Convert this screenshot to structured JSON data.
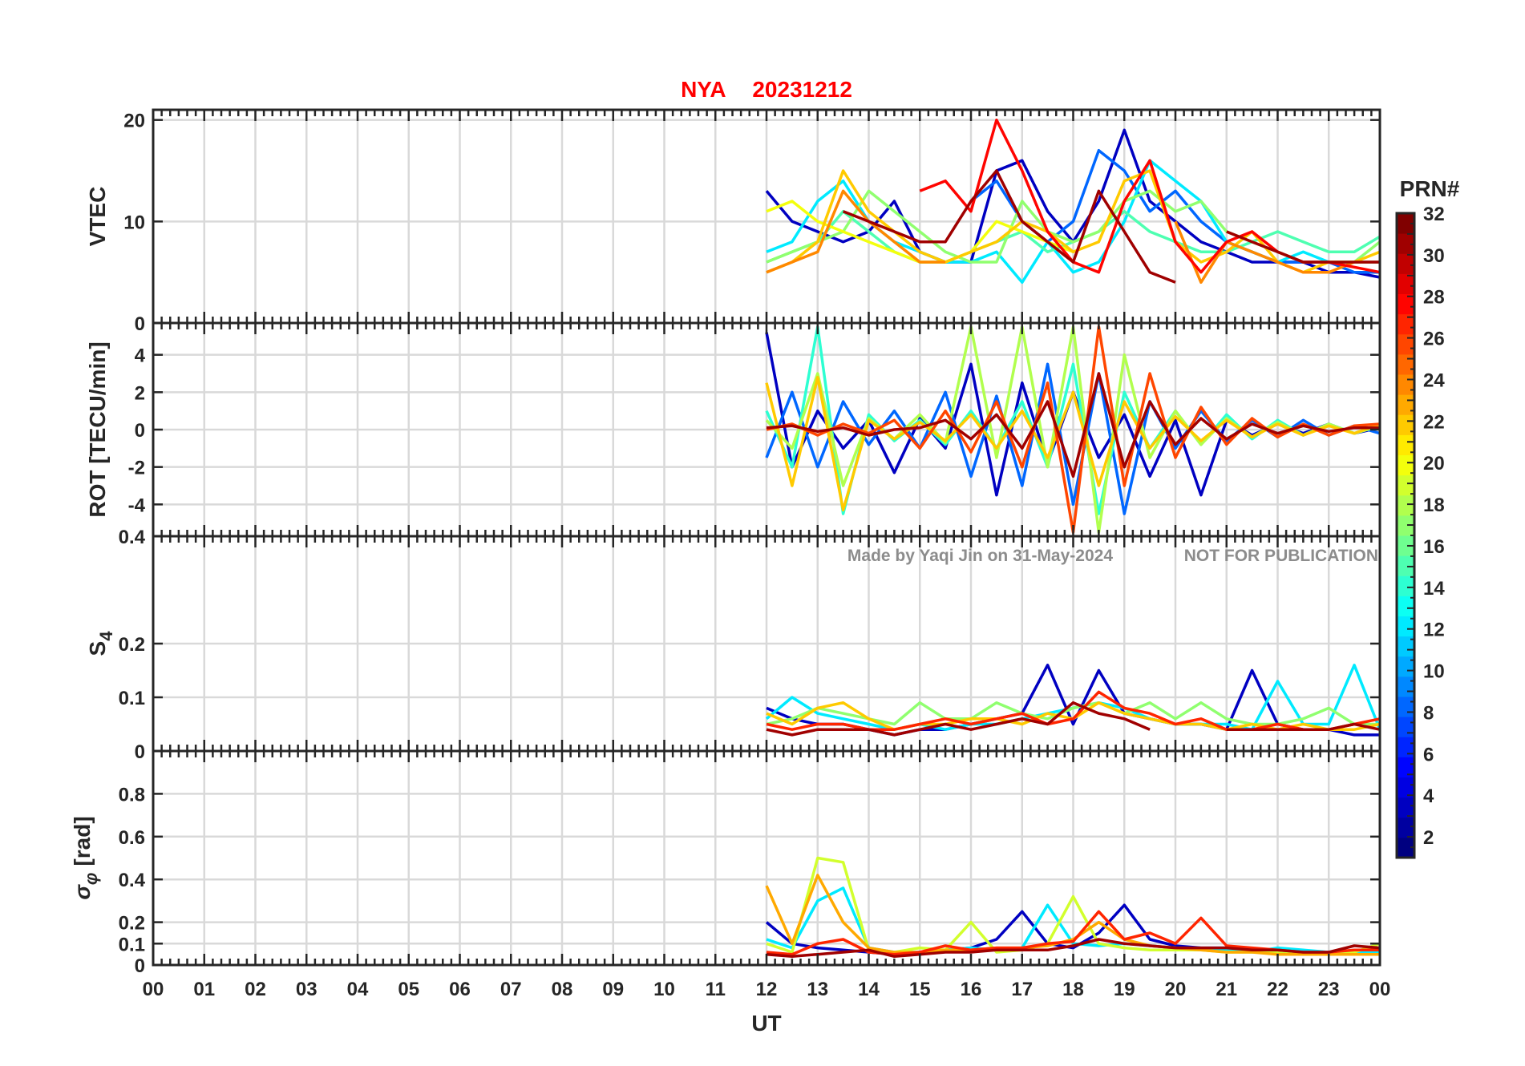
{
  "chart_data": {
    "type": "line",
    "title": {
      "station": "NYA",
      "date": "20231212"
    },
    "xlabel": "UT",
    "xlim": [
      0,
      24
    ],
    "x_tick_labels": [
      "00",
      "01",
      "02",
      "03",
      "04",
      "05",
      "06",
      "07",
      "08",
      "09",
      "10",
      "11",
      "12",
      "13",
      "14",
      "15",
      "16",
      "17",
      "18",
      "19",
      "20",
      "21",
      "22",
      "23",
      "00"
    ],
    "watermark": {
      "made_by": "Made by Yaqi Jin on 31-May-2024",
      "notice": "NOT FOR PUBLICATION"
    },
    "colorbar": {
      "label": "PRN#",
      "range": [
        1,
        32
      ],
      "ticks": [
        2,
        4,
        6,
        8,
        10,
        12,
        14,
        16,
        18,
        20,
        22,
        24,
        26,
        28,
        30,
        32
      ],
      "colormap": "jet"
    },
    "x": [
      12,
      12.5,
      13,
      13.5,
      14,
      14.5,
      15,
      15.5,
      16,
      16.5,
      17,
      17.5,
      18,
      18.5,
      19,
      19.5,
      20,
      20.5,
      21,
      21.5,
      22,
      22.5,
      23,
      23.5,
      24
    ],
    "panels": [
      {
        "name": "vtec",
        "ylabel": "VTEC",
        "ylim": [
          0,
          21
        ],
        "yticks": [
          0,
          10,
          20
        ],
        "ytick_labels": [
          "0",
          "10",
          "20"
        ],
        "series": [
          {
            "prn": 3,
            "values": [
              13,
              10,
              9,
              8,
              9,
              12,
              7,
              6,
              6,
              15,
              16,
              11,
              8,
              12,
              19,
              12,
              10,
              8,
              7,
              6,
              6,
              6,
              5,
              5,
              4.5
            ]
          },
          {
            "prn": 8,
            "values": [
              null,
              null,
              null,
              null,
              null,
              null,
              null,
              null,
              12,
              14,
              10,
              8,
              10,
              17,
              15,
              11,
              13,
              10,
              8,
              7,
              6,
              6,
              6,
              5,
              5
            ]
          },
          {
            "prn": 12,
            "values": [
              7,
              8,
              12,
              14,
              10,
              8,
              7,
              6,
              6,
              7,
              4,
              8,
              5,
              6,
              10,
              16,
              14,
              12,
              8,
              7,
              6,
              7,
              6,
              6,
              6
            ]
          },
          {
            "prn": 15,
            "values": [
              6,
              7,
              8,
              11,
              9,
              7,
              6,
              6,
              7,
              8,
              9,
              7,
              8,
              9,
              11,
              9,
              8,
              7,
              7,
              8,
              9,
              8,
              7,
              7,
              8.5
            ]
          },
          {
            "prn": 17,
            "values": [
              6,
              7,
              8,
              9,
              13,
              11,
              9,
              7,
              6,
              6,
              12,
              9,
              8,
              9,
              12,
              13,
              11,
              12,
              9,
              8,
              7,
              6,
              6,
              6,
              8
            ]
          },
          {
            "prn": 20,
            "values": [
              11,
              12,
              10,
              9,
              8,
              7,
              6,
              6,
              7,
              10,
              9,
              8,
              7,
              null,
              null,
              null,
              null,
              null,
              null,
              null,
              null,
              null,
              null,
              null,
              null
            ]
          },
          {
            "prn": 22,
            "values": [
              5,
              6,
              8,
              15,
              11,
              9,
              7,
              6,
              7,
              8,
              10,
              9,
              7,
              8,
              14,
              15,
              8,
              6,
              7,
              9,
              6,
              5,
              6,
              6,
              7
            ]
          },
          {
            "prn": 24,
            "values": [
              5,
              6,
              7,
              13,
              10,
              8,
              6,
              6,
              null,
              null,
              null,
              null,
              null,
              null,
              null,
              null,
              10,
              4,
              8,
              7,
              6,
              5,
              5,
              6,
              6
            ]
          },
          {
            "prn": 28,
            "values": [
              null,
              null,
              null,
              null,
              null,
              null,
              13,
              14,
              11,
              20,
              15,
              9,
              6,
              5,
              12,
              16,
              8,
              5,
              8,
              9,
              7,
              6,
              6,
              5.5,
              5
            ]
          },
          {
            "prn": 31,
            "values": [
              null,
              null,
              null,
              11,
              10,
              9,
              8,
              8,
              12,
              15,
              10,
              8,
              6,
              13,
              9,
              5,
              4,
              null,
              9,
              8,
              7,
              6,
              6,
              6,
              6
            ]
          }
        ]
      },
      {
        "name": "rot",
        "ylabel": "ROT [TECU/min]",
        "ylim": [
          -5.7,
          5.7
        ],
        "yticks": [
          -4,
          -2,
          0,
          2,
          4
        ],
        "ytick_labels": [
          "-4",
          "-2",
          "0",
          "2",
          "4"
        ],
        "series": [
          {
            "prn": 3,
            "values": [
              5.2,
              -2,
              1,
              -1,
              0.5,
              -2.3,
              0.6,
              -1,
              3.5,
              -3.5,
              2.5,
              -1.8,
              2,
              -1.5,
              0.8,
              -2.5,
              0.5,
              -3.5,
              0.5,
              -0.3,
              0.3,
              -0.2,
              0.3,
              -0.2,
              0.1
            ]
          },
          {
            "prn": 8,
            "values": [
              -1.5,
              2,
              -2,
              1.5,
              -0.8,
              1,
              -1,
              2,
              -2.5,
              1.8,
              -3,
              3.5,
              -4,
              3,
              -4.5,
              1.5,
              -1,
              1,
              -0.6,
              0.5,
              -0.4,
              0.5,
              -0.3,
              0.2,
              -0.2
            ]
          },
          {
            "prn": 14,
            "values": [
              1,
              -2,
              5.5,
              -4.5,
              0.8,
              -0.6,
              0.5,
              -0.8,
              1,
              -1,
              1.5,
              -2,
              3.5,
              -4.5,
              2,
              -1,
              1,
              -0.8,
              0.8,
              -0.5,
              0.5,
              -0.3,
              0.3,
              -0.2,
              0.2
            ]
          },
          {
            "prn": 18,
            "values": [
              0.5,
              -1,
              3,
              -3,
              0.6,
              -0.5,
              0.8,
              -0.7,
              5.5,
              -1.5,
              5.5,
              -2,
              5.5,
              -5.5,
              4,
              -1.5,
              1,
              -0.8,
              0.6,
              -0.4,
              0.4,
              -0.3,
              0.3,
              -0.2,
              0.2
            ]
          },
          {
            "prn": 22,
            "values": [
              2.5,
              -3,
              2.8,
              -4.3,
              0.5,
              -0.5,
              0.4,
              -0.6,
              0.8,
              -1,
              1,
              -1.5,
              2,
              -3,
              1.5,
              -1,
              0.7,
              -0.6,
              0.5,
              -0.4,
              0.3,
              -0.3,
              0.2,
              -0.2,
              0.3
            ]
          },
          {
            "prn": 26,
            "values": [
              0,
              0.3,
              -0.3,
              0.3,
              -0.2,
              0.5,
              -1,
              1,
              -1.2,
              1.5,
              -2,
              2.5,
              -5.5,
              5.5,
              -3,
              3,
              -1.5,
              1.2,
              -0.8,
              0.6,
              -0.4,
              0.3,
              -0.3,
              0.2,
              0.3
            ]
          },
          {
            "prn": 31,
            "values": [
              0.1,
              0.2,
              -0.1,
              0.1,
              -0.3,
              0,
              0.1,
              0.5,
              -0.5,
              0.8,
              -1,
              1.5,
              -2.5,
              3,
              -2,
              1.5,
              -0.8,
              0.6,
              -0.5,
              0.3,
              -0.2,
              0.2,
              -0.1,
              0.1,
              0.1
            ]
          }
        ]
      },
      {
        "name": "s4",
        "ylabel": "S",
        "ylabel_sub": "4",
        "ylim": [
          0,
          0.4
        ],
        "yticks": [
          0,
          0.1,
          0.2,
          0.4
        ],
        "ytick_labels": [
          "0",
          "0.1",
          "0.2",
          "0.4"
        ],
        "series": [
          {
            "prn": 3,
            "values": [
              0.08,
              0.06,
              0.05,
              0.05,
              0.04,
              0.03,
              0.04,
              0.04,
              0.05,
              0.06,
              0.07,
              0.16,
              0.05,
              0.15,
              0.07,
              0.06,
              0.05,
              0.05,
              0.04,
              0.15,
              0.05,
              0.04,
              0.04,
              0.03,
              0.03
            ]
          },
          {
            "prn": 12,
            "values": [
              0.06,
              0.1,
              0.07,
              0.06,
              0.05,
              0.04,
              0.05,
              0.04,
              0.05,
              0.05,
              0.06,
              0.07,
              0.08,
              0.09,
              0.08,
              0.06,
              0.05,
              0.05,
              0.05,
              0.04,
              0.13,
              0.05,
              0.05,
              0.16,
              0.04
            ]
          },
          {
            "prn": 17,
            "values": [
              0.05,
              0.06,
              0.08,
              0.07,
              0.06,
              0.05,
              0.09,
              0.06,
              0.06,
              0.09,
              0.07,
              0.06,
              0.08,
              0.09,
              0.07,
              0.09,
              0.06,
              0.09,
              0.06,
              0.05,
              0.05,
              0.06,
              0.08,
              0.05,
              0.05
            ]
          },
          {
            "prn": 22,
            "values": [
              0.07,
              0.05,
              0.08,
              0.09,
              0.06,
              0.04,
              0.05,
              0.05,
              0.06,
              0.06,
              0.05,
              0.07,
              0.06,
              0.09,
              0.07,
              0.06,
              0.05,
              0.05,
              0.04,
              0.05,
              0.04,
              0.05,
              0.04,
              0.04,
              0.05
            ]
          },
          {
            "prn": 27,
            "values": [
              0.05,
              0.04,
              0.05,
              0.05,
              0.04,
              0.04,
              0.05,
              0.06,
              0.05,
              0.06,
              0.07,
              0.05,
              0.06,
              0.11,
              0.08,
              0.07,
              0.05,
              0.06,
              0.04,
              0.04,
              0.05,
              0.04,
              0.04,
              0.05,
              0.06
            ]
          },
          {
            "prn": 31,
            "values": [
              0.04,
              0.03,
              0.04,
              0.04,
              0.04,
              0.03,
              0.04,
              0.05,
              0.04,
              0.05,
              0.06,
              0.05,
              0.09,
              0.07,
              0.06,
              0.04,
              null,
              null,
              0.04,
              0.04,
              0.04,
              0.04,
              0.04,
              0.05,
              0.04
            ]
          }
        ]
      },
      {
        "name": "sigma_phi",
        "ylabel": "σ",
        "ylabel_sub": "φ",
        "ylabel_unit": "[rad]",
        "ylim": [
          0,
          1.0
        ],
        "yticks": [
          0,
          0.1,
          0.2,
          0.4,
          0.6,
          0.8
        ],
        "ytick_labels": [
          "0",
          "0.1",
          "0.2",
          "0.4",
          "0.6",
          "0.8"
        ],
        "series": [
          {
            "prn": 3,
            "values": [
              0.2,
              0.1,
              0.08,
              0.07,
              0.06,
              0.05,
              0.06,
              0.07,
              0.08,
              0.12,
              0.25,
              0.1,
              0.08,
              0.15,
              0.28,
              0.12,
              0.09,
              0.08,
              0.08,
              0.07,
              0.07,
              0.06,
              0.06,
              0.06,
              0.06
            ]
          },
          {
            "prn": 12,
            "values": [
              0.12,
              0.08,
              0.3,
              0.36,
              0.08,
              0.06,
              0.06,
              0.07,
              0.08,
              0.07,
              0.08,
              0.28,
              0.1,
              0.09,
              0.1,
              0.09,
              0.08,
              0.07,
              0.07,
              0.06,
              0.08,
              0.07,
              0.06,
              0.06,
              0.06
            ]
          },
          {
            "prn": 19,
            "values": [
              0.1,
              0.06,
              0.5,
              0.48,
              0.07,
              0.06,
              0.08,
              0.07,
              0.2,
              0.06,
              0.07,
              0.1,
              0.32,
              0.1,
              0.08,
              0.07,
              0.07,
              0.07,
              0.06,
              0.06,
              0.06,
              0.05,
              0.05,
              0.06,
              0.1
            ]
          },
          {
            "prn": 23,
            "values": [
              0.37,
              0.1,
              0.42,
              0.2,
              0.08,
              0.06,
              0.06,
              0.07,
              0.07,
              0.08,
              0.08,
              0.09,
              0.12,
              0.2,
              0.12,
              0.09,
              0.08,
              0.07,
              0.06,
              0.06,
              0.05,
              0.05,
              0.05,
              0.05,
              0.05
            ]
          },
          {
            "prn": 27,
            "values": [
              0.06,
              0.05,
              0.1,
              0.12,
              0.06,
              0.05,
              0.06,
              0.09,
              0.07,
              0.08,
              0.08,
              0.1,
              0.11,
              0.25,
              0.12,
              0.15,
              0.1,
              0.22,
              0.09,
              0.08,
              0.07,
              0.06,
              0.06,
              0.07,
              0.07
            ]
          },
          {
            "prn": 31,
            "values": [
              0.05,
              0.04,
              0.05,
              0.06,
              0.07,
              0.04,
              0.05,
              0.06,
              0.06,
              0.07,
              0.07,
              0.07,
              0.09,
              0.12,
              0.1,
              0.09,
              0.08,
              0.08,
              0.08,
              0.07,
              0.07,
              0.06,
              0.06,
              0.09,
              0.08
            ]
          }
        ]
      }
    ]
  }
}
